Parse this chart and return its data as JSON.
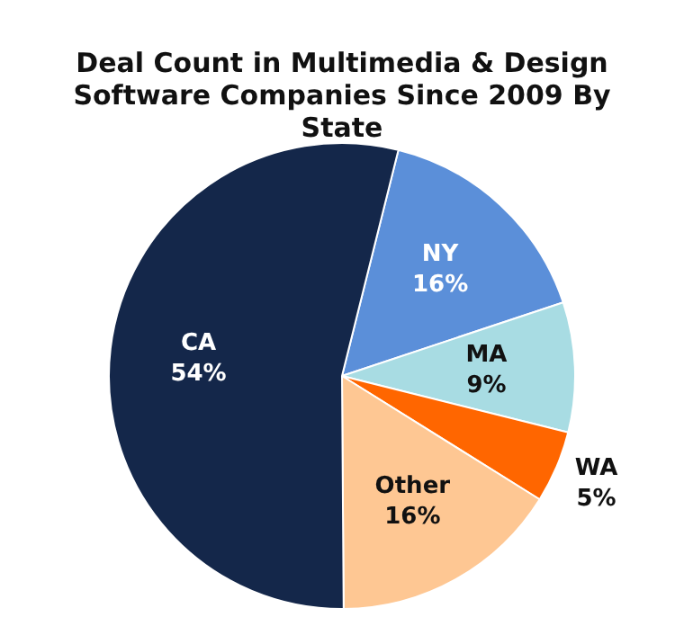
{
  "chart_data": {
    "type": "pie",
    "title": "Deal Count in Multimedia & Design Software Companies Since 2009 By State",
    "categories": [
      "NY",
      "MA",
      "WA",
      "Other",
      "CA"
    ],
    "values": [
      16,
      9,
      5,
      16,
      54
    ],
    "value_labels": [
      "16%",
      "9%",
      "5%",
      "16%",
      "54%"
    ],
    "colors": [
      "#5b8fd9",
      "#a8dce3",
      "#ff6600",
      "#fec793",
      "#14274a"
    ],
    "legend": false
  }
}
